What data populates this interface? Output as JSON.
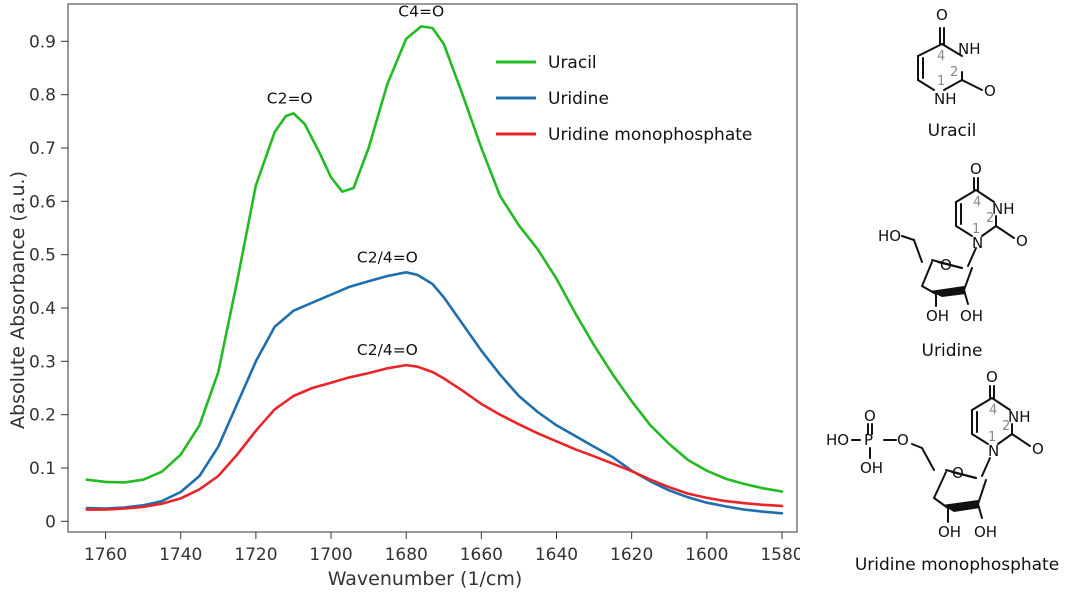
{
  "chart_data": {
    "type": "line",
    "xlabel": "Wavenumber (1/cm)",
    "ylabel": "Absolute Absorbance (a.u.)",
    "xlim": [
      1770,
      1576
    ],
    "ylim": [
      -0.02,
      0.97
    ],
    "xticks": [
      1760,
      1740,
      1720,
      1700,
      1680,
      1660,
      1640,
      1620,
      1600,
      1580
    ],
    "yticks": [
      0,
      0.1,
      0.2,
      0.3,
      0.4,
      0.5,
      0.6,
      0.7,
      0.8,
      0.9
    ],
    "ytick_labels": [
      "0",
      "0.1",
      "0.2",
      "0.3",
      "0.4",
      "0.5",
      "0.6",
      "0.7",
      "0.8",
      "0.9"
    ],
    "legend_position": "top-right",
    "series": [
      {
        "name": "Uracil",
        "color": "#22bb22",
        "points": [
          [
            1765,
            0.078
          ],
          [
            1760,
            0.074
          ],
          [
            1755,
            0.073
          ],
          [
            1750,
            0.078
          ],
          [
            1745,
            0.093
          ],
          [
            1740,
            0.125
          ],
          [
            1735,
            0.18
          ],
          [
            1730,
            0.28
          ],
          [
            1725,
            0.45
          ],
          [
            1720,
            0.63
          ],
          [
            1715,
            0.73
          ],
          [
            1712,
            0.76
          ],
          [
            1710,
            0.765
          ],
          [
            1707,
            0.745
          ],
          [
            1703,
            0.69
          ],
          [
            1700,
            0.645
          ],
          [
            1697,
            0.618
          ],
          [
            1694,
            0.625
          ],
          [
            1690,
            0.7
          ],
          [
            1685,
            0.82
          ],
          [
            1680,
            0.905
          ],
          [
            1676,
            0.928
          ],
          [
            1673,
            0.925
          ],
          [
            1670,
            0.895
          ],
          [
            1665,
            0.8
          ],
          [
            1660,
            0.7
          ],
          [
            1655,
            0.61
          ],
          [
            1650,
            0.555
          ],
          [
            1645,
            0.51
          ],
          [
            1640,
            0.455
          ],
          [
            1635,
            0.39
          ],
          [
            1630,
            0.33
          ],
          [
            1625,
            0.275
          ],
          [
            1620,
            0.225
          ],
          [
            1615,
            0.18
          ],
          [
            1610,
            0.145
          ],
          [
            1605,
            0.115
          ],
          [
            1600,
            0.095
          ],
          [
            1595,
            0.08
          ],
          [
            1590,
            0.07
          ],
          [
            1585,
            0.062
          ],
          [
            1580,
            0.056
          ]
        ]
      },
      {
        "name": "Uridine",
        "color": "#1f6faf",
        "points": [
          [
            1765,
            0.025
          ],
          [
            1760,
            0.024
          ],
          [
            1755,
            0.026
          ],
          [
            1750,
            0.03
          ],
          [
            1745,
            0.038
          ],
          [
            1740,
            0.055
          ],
          [
            1735,
            0.085
          ],
          [
            1730,
            0.14
          ],
          [
            1725,
            0.22
          ],
          [
            1720,
            0.3
          ],
          [
            1715,
            0.365
          ],
          [
            1710,
            0.395
          ],
          [
            1705,
            0.41
          ],
          [
            1700,
            0.425
          ],
          [
            1695,
            0.44
          ],
          [
            1690,
            0.45
          ],
          [
            1685,
            0.46
          ],
          [
            1680,
            0.467
          ],
          [
            1677,
            0.462
          ],
          [
            1673,
            0.445
          ],
          [
            1670,
            0.42
          ],
          [
            1665,
            0.37
          ],
          [
            1660,
            0.32
          ],
          [
            1655,
            0.275
          ],
          [
            1650,
            0.235
          ],
          [
            1645,
            0.205
          ],
          [
            1640,
            0.18
          ],
          [
            1635,
            0.16
          ],
          [
            1630,
            0.14
          ],
          [
            1625,
            0.12
          ],
          [
            1620,
            0.095
          ],
          [
            1615,
            0.075
          ],
          [
            1610,
            0.058
          ],
          [
            1605,
            0.045
          ],
          [
            1600,
            0.035
          ],
          [
            1595,
            0.028
          ],
          [
            1590,
            0.022
          ],
          [
            1585,
            0.018
          ],
          [
            1580,
            0.015
          ]
        ]
      },
      {
        "name": "Uridine monophosphate",
        "color": "#e8262a",
        "points": [
          [
            1765,
            0.022
          ],
          [
            1760,
            0.022
          ],
          [
            1755,
            0.024
          ],
          [
            1750,
            0.027
          ],
          [
            1745,
            0.033
          ],
          [
            1740,
            0.043
          ],
          [
            1735,
            0.06
          ],
          [
            1730,
            0.085
          ],
          [
            1725,
            0.125
          ],
          [
            1720,
            0.17
          ],
          [
            1715,
            0.21
          ],
          [
            1710,
            0.235
          ],
          [
            1705,
            0.25
          ],
          [
            1700,
            0.26
          ],
          [
            1695,
            0.27
          ],
          [
            1690,
            0.278
          ],
          [
            1685,
            0.287
          ],
          [
            1680,
            0.293
          ],
          [
            1677,
            0.29
          ],
          [
            1673,
            0.28
          ],
          [
            1670,
            0.268
          ],
          [
            1665,
            0.245
          ],
          [
            1660,
            0.22
          ],
          [
            1655,
            0.2
          ],
          [
            1650,
            0.182
          ],
          [
            1645,
            0.165
          ],
          [
            1640,
            0.15
          ],
          [
            1635,
            0.135
          ],
          [
            1630,
            0.122
          ],
          [
            1625,
            0.108
          ],
          [
            1620,
            0.094
          ],
          [
            1615,
            0.078
          ],
          [
            1610,
            0.064
          ],
          [
            1605,
            0.052
          ],
          [
            1600,
            0.044
          ],
          [
            1595,
            0.038
          ],
          [
            1590,
            0.034
          ],
          [
            1585,
            0.031
          ],
          [
            1580,
            0.029
          ]
        ]
      }
    ],
    "annotations": [
      {
        "text": "C2=O",
        "x": 1711,
        "y": 0.765
      },
      {
        "text": "C4=O",
        "x": 1676,
        "y": 0.928
      },
      {
        "text": "C2/4=O",
        "x": 1685,
        "y": 0.467
      },
      {
        "text": "C2/4=O",
        "x": 1685,
        "y": 0.293
      }
    ]
  },
  "molecules": {
    "uracil": {
      "name": "Uracil",
      "atoms": {
        "o4": "O",
        "nh3": "NH",
        "o2": "O",
        "nh1": "NH"
      },
      "numbers": {
        "n1": "1",
        "n2": "2",
        "n4": "4"
      }
    },
    "uridine": {
      "name": "Uridine",
      "atoms": {
        "o4": "O",
        "nh3": "NH",
        "o2": "O",
        "n1": "N",
        "ho5": "HO",
        "o_ring": "O",
        "oh3": "OH",
        "oh2": "OH"
      },
      "numbers": {
        "n1": "1",
        "n2": "2",
        "n4": "4"
      }
    },
    "ump": {
      "name": "Uridine monophosphate",
      "atoms": {
        "o4": "O",
        "nh3": "NH",
        "o2": "O",
        "n1": "N",
        "ho_p": "HO",
        "p": "P",
        "o_top": "O",
        "oh_p": "OH",
        "o5": "O",
        "o_ring": "O",
        "oh3": "OH",
        "oh2": "OH"
      },
      "numbers": {
        "n1": "1",
        "n2": "2",
        "n4": "4"
      }
    }
  }
}
